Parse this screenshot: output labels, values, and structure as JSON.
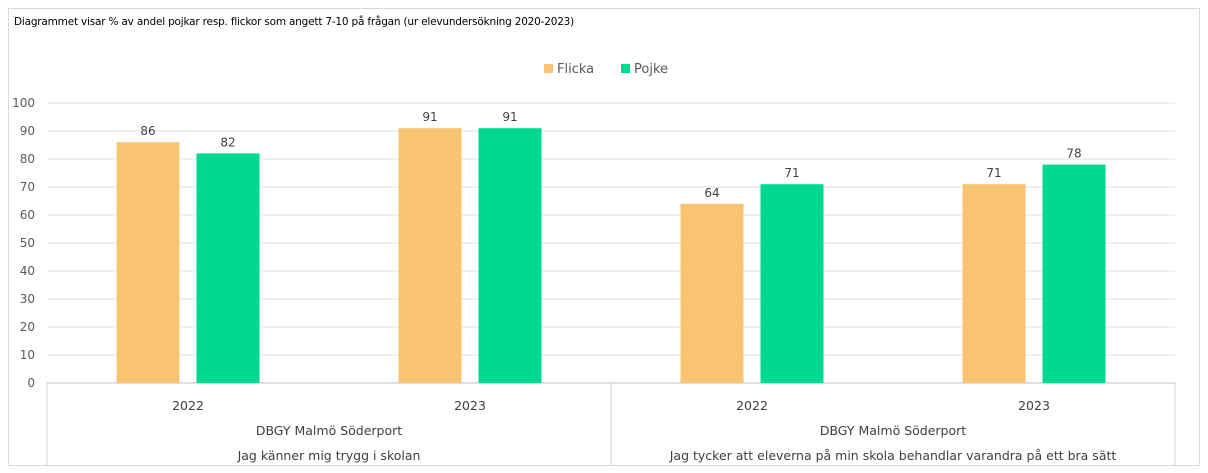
{
  "title": "Diagrammet visar % av andel pojkar resp. flickor som angett 7-10 på frågan (ur elevundersökning 2020-2023)",
  "chart_data": {
    "type": "bar",
    "title": "Diagrammet visar % av andel pojkar resp. flickor som angett 7-10 på frågan (ur elevundersökning 2020-2023)",
    "ylim": [
      0,
      100
    ],
    "yticks": [
      0,
      10,
      20,
      30,
      40,
      50,
      60,
      70,
      80,
      90,
      100
    ],
    "grid": true,
    "legend_position": "top-center",
    "categories": [
      {
        "year": "2022",
        "school": "DBGY Malmö Söderport",
        "question": "Jag känner mig trygg i skolan"
      },
      {
        "year": "2023",
        "school": "DBGY Malmö Söderport",
        "question": "Jag känner mig trygg i skolan"
      },
      {
        "year": "2022",
        "school": "DBGY Malmö Söderport",
        "question": "Jag tycker att eleverna på min skola behandlar varandra på ett bra sätt"
      },
      {
        "year": "2023",
        "school": "DBGY Malmö Söderport",
        "question": "Jag tycker att eleverna på min skola behandlar varandra på ett bra sätt"
      }
    ],
    "groups": [
      {
        "school": "DBGY Malmö Söderport",
        "question": "Jag känner mig trygg i skolan"
      },
      {
        "school": "DBGY Malmö Söderport",
        "question": "Jag tycker att eleverna på min skola behandlar varandra på ett bra sätt"
      }
    ],
    "series": [
      {
        "name": "Flicka",
        "color": "#F8C471",
        "values": [
          86,
          91,
          64,
          71
        ]
      },
      {
        "name": "Pojke",
        "color": "#00D98E",
        "values": [
          82,
          91,
          71,
          78
        ]
      }
    ]
  }
}
